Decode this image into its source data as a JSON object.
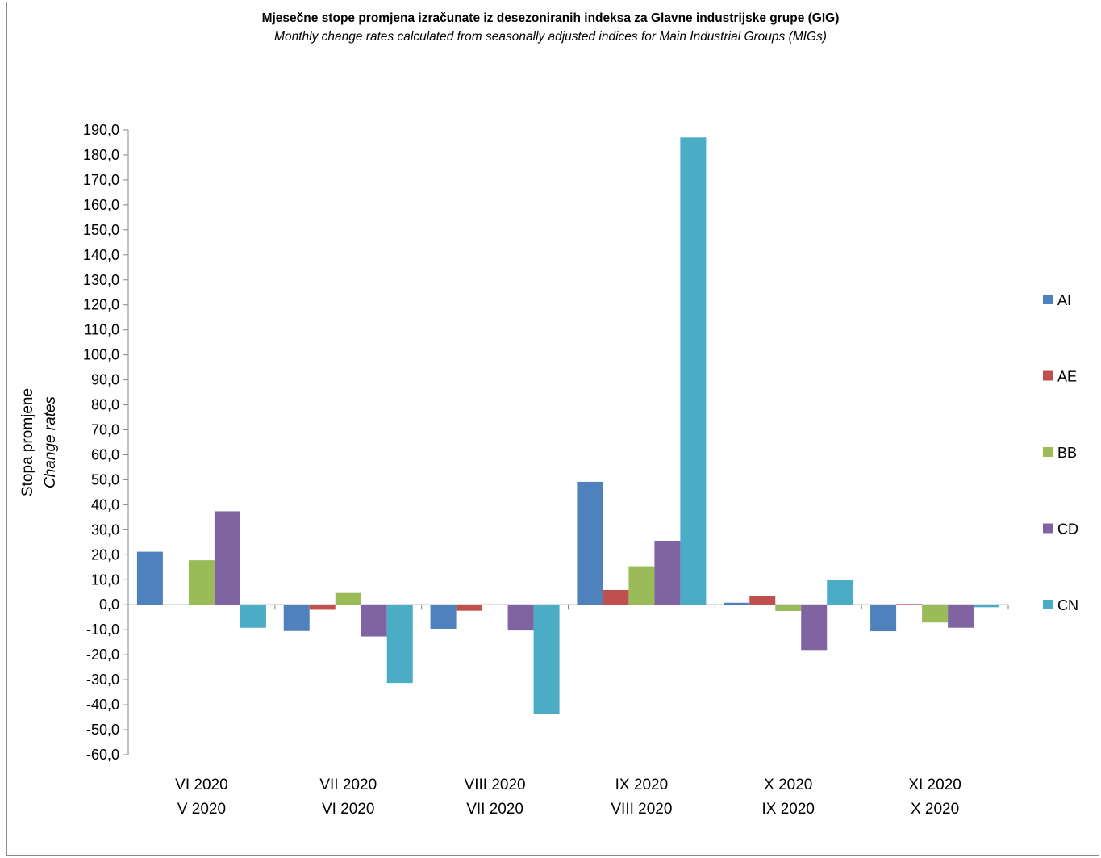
{
  "chart_data": {
    "type": "bar",
    "title": "Mjesečne stope promjena izračunate iz desezoniranih indeksa za Glavne industrijske grupe (GIG)",
    "subtitle": "Monthly change rates calculated from seasonally adjusted indices for Main Industrial Groups (MIGs)",
    "ylabel": "Stopa promjene",
    "ylabel_en": "Change rates",
    "ylim": [
      -60,
      190
    ],
    "ytick_step": 10,
    "ytick_labels": [
      "190,0",
      "180,0",
      "170,0",
      "160,0",
      "150,0",
      "140,0",
      "130,0",
      "120,0",
      "110,0",
      "100,0",
      "90,0",
      "80,0",
      "70,0",
      "60,0",
      "50,0",
      "40,0",
      "30,0",
      "20,0",
      "10,0",
      "0,0",
      "-10,0",
      "-20,0",
      "-30,0",
      "-40,0",
      "-50,0",
      "-60,0"
    ],
    "categories": [
      {
        "line1": "VI 2020",
        "line2": "V 2020"
      },
      {
        "line1": "VII 2020",
        "line2": "VI 2020"
      },
      {
        "line1": "VIII 2020",
        "line2": "VII 2020"
      },
      {
        "line1": "IX 2020",
        "line2": "VIII 2020"
      },
      {
        "line1": "X 2020",
        "line2": "IX 2020"
      },
      {
        "line1": "XI 2020",
        "line2": "X 2020"
      }
    ],
    "series": [
      {
        "name": "AI",
        "color": "#4F81BD",
        "values": [
          21.2,
          -10.5,
          -9.6,
          49.2,
          0.8,
          -10.6
        ]
      },
      {
        "name": "AE",
        "color": "#C0504D",
        "values": [
          0.0,
          -2.0,
          -2.4,
          5.9,
          3.4,
          0.3
        ]
      },
      {
        "name": "BB",
        "color": "#9BBB59",
        "values": [
          17.8,
          4.7,
          0.0,
          15.4,
          -2.5,
          -7.1
        ]
      },
      {
        "name": "CD",
        "color": "#8064A2",
        "values": [
          37.4,
          -12.7,
          -10.3,
          25.6,
          -18.1,
          -9.2
        ]
      },
      {
        "name": "CN",
        "color": "#4BACC6",
        "values": [
          -9.2,
          -31.3,
          -43.7,
          187.0,
          10.1,
          -1.0
        ]
      }
    ],
    "legend_position": "right",
    "grid": false
  }
}
